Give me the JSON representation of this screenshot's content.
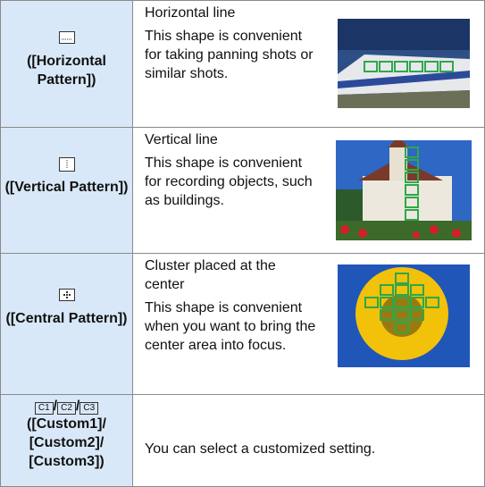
{
  "rows": [
    {
      "mode": "([Horizontal Pattern])",
      "heading": "Horizontal line",
      "description": "This shape is convenient for taking panning shots or similar shots."
    },
    {
      "mode": "([Vertical Pattern])",
      "heading": "Vertical line",
      "description": "This shape is convenient for recording objects, such as buildings."
    },
    {
      "mode": "([Central Pattern])",
      "heading": "Cluster placed at the center",
      "description": "This shape is convenient when you want to bring the center area into focus."
    },
    {
      "icons": [
        "C1",
        "C2",
        "C3"
      ],
      "separator": "/",
      "mode": "([Custom1]/ [Custom2]/ [Custom3])",
      "description": "You can select a customized setting."
    }
  ]
}
